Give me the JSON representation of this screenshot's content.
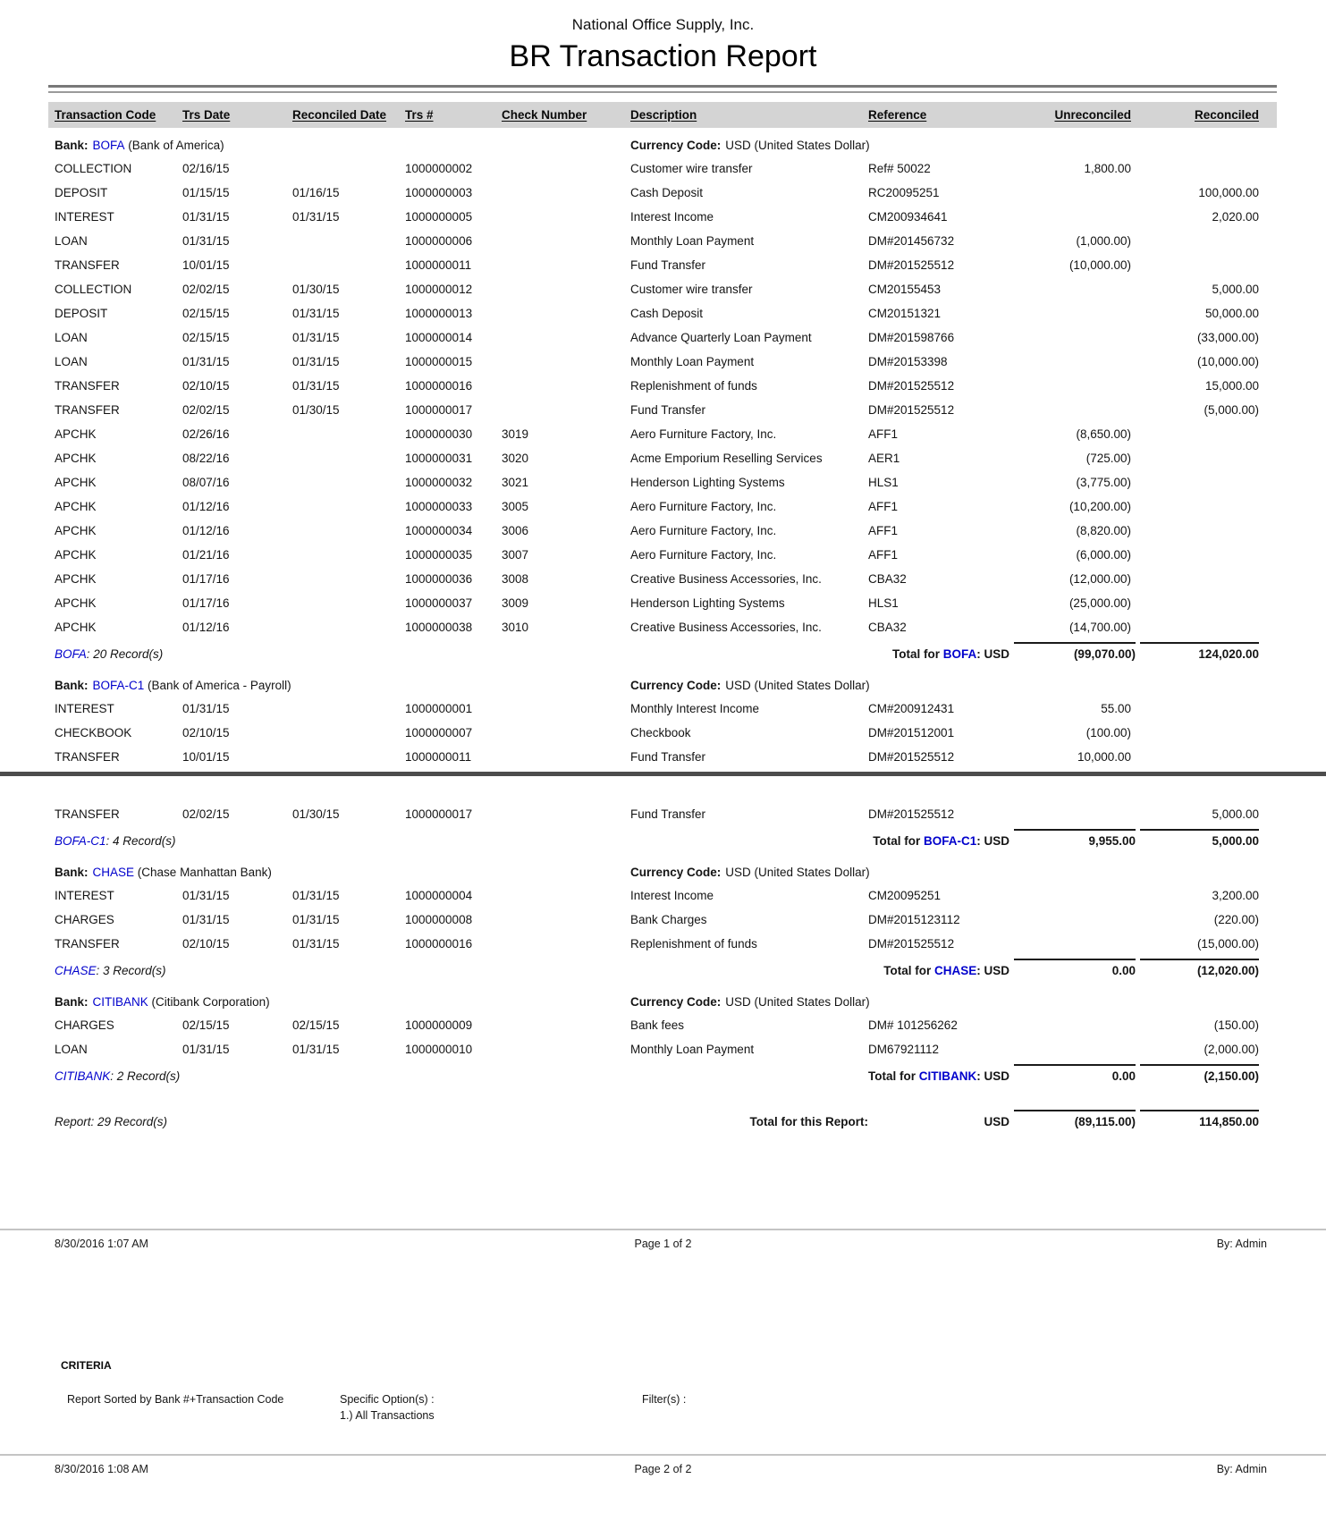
{
  "report": {
    "company": "National Office Supply, Inc.",
    "title": "BR Transaction Report",
    "colors": {
      "link_blue": "#0000cc",
      "header_band": "#d4d4d4",
      "rule_dark": "#787878",
      "page_break_line": "#4c4c4c",
      "footer_rule": "#c4c4c4"
    },
    "columns": [
      "Transaction Code",
      "Trs Date",
      "Reconciled Date",
      "Trs #",
      "Check Number",
      "Description",
      "Reference",
      "Unreconciled",
      "Reconciled"
    ],
    "labels": {
      "bank": "Bank:",
      "currency": "Currency Code:",
      "total_for": "Total for ",
      "colon_usd": ": USD"
    },
    "sections": [
      {
        "code": "BOFA",
        "name": "(Bank of America)",
        "currency": "USD (United States Dollar)",
        "records": ": 20 Record(s)",
        "total_unrec": "(99,070.00)",
        "total_rec": "124,020.00",
        "rows": [
          {
            "code": "COLLECTION",
            "trs_date": "02/16/15",
            "recon_date": "",
            "trs_no": "1000000002",
            "check": "",
            "desc": "Customer wire transfer",
            "ref": "Ref# 50022",
            "unrec": "1,800.00",
            "rec": ""
          },
          {
            "code": "DEPOSIT",
            "trs_date": "01/15/15",
            "recon_date": "01/16/15",
            "trs_no": "1000000003",
            "check": "",
            "desc": "Cash Deposit",
            "ref": "RC20095251",
            "unrec": "",
            "rec": "100,000.00"
          },
          {
            "code": "INTEREST",
            "trs_date": "01/31/15",
            "recon_date": "01/31/15",
            "trs_no": "1000000005",
            "check": "",
            "desc": "Interest Income",
            "ref": "CM200934641",
            "unrec": "",
            "rec": "2,020.00"
          },
          {
            "code": "LOAN",
            "trs_date": "01/31/15",
            "recon_date": "",
            "trs_no": "1000000006",
            "check": "",
            "desc": "Monthly Loan Payment",
            "ref": "DM#201456732",
            "unrec": "(1,000.00)",
            "rec": ""
          },
          {
            "code": "TRANSFER",
            "trs_date": "10/01/15",
            "recon_date": "",
            "trs_no": "1000000011",
            "check": "",
            "desc": "Fund Transfer",
            "ref": "DM#201525512",
            "unrec": "(10,000.00)",
            "rec": ""
          },
          {
            "code": "COLLECTION",
            "trs_date": "02/02/15",
            "recon_date": "01/30/15",
            "trs_no": "1000000012",
            "check": "",
            "desc": "Customer wire transfer",
            "ref": "CM20155453",
            "unrec": "",
            "rec": "5,000.00"
          },
          {
            "code": "DEPOSIT",
            "trs_date": "02/15/15",
            "recon_date": "01/31/15",
            "trs_no": "1000000013",
            "check": "",
            "desc": "Cash Deposit",
            "ref": "CM20151321",
            "unrec": "",
            "rec": "50,000.00"
          },
          {
            "code": "LOAN",
            "trs_date": "02/15/15",
            "recon_date": "01/31/15",
            "trs_no": "1000000014",
            "check": "",
            "desc": "Advance Quarterly Loan Payment",
            "ref": "DM#201598766",
            "unrec": "",
            "rec": "(33,000.00)"
          },
          {
            "code": "LOAN",
            "trs_date": "01/31/15",
            "recon_date": "01/31/15",
            "trs_no": "1000000015",
            "check": "",
            "desc": "Monthly Loan Payment",
            "ref": "DM#20153398",
            "unrec": "",
            "rec": "(10,000.00)"
          },
          {
            "code": "TRANSFER",
            "trs_date": "02/10/15",
            "recon_date": "01/31/15",
            "trs_no": "1000000016",
            "check": "",
            "desc": "Replenishment of funds",
            "ref": "DM#201525512",
            "unrec": "",
            "rec": "15,000.00"
          },
          {
            "code": "TRANSFER",
            "trs_date": "02/02/15",
            "recon_date": "01/30/15",
            "trs_no": "1000000017",
            "check": "",
            "desc": "Fund Transfer",
            "ref": "DM#201525512",
            "unrec": "",
            "rec": "(5,000.00)"
          },
          {
            "code": "APCHK",
            "trs_date": "02/26/16",
            "recon_date": "",
            "trs_no": "1000000030",
            "check": "3019",
            "desc": "Aero Furniture Factory, Inc.",
            "ref": "AFF1",
            "unrec": "(8,650.00)",
            "rec": ""
          },
          {
            "code": "APCHK",
            "trs_date": "08/22/16",
            "recon_date": "",
            "trs_no": "1000000031",
            "check": "3020",
            "desc": "Acme Emporium Reselling Services",
            "ref": "AER1",
            "unrec": "(725.00)",
            "rec": ""
          },
          {
            "code": "APCHK",
            "trs_date": "08/07/16",
            "recon_date": "",
            "trs_no": "1000000032",
            "check": "3021",
            "desc": "Henderson Lighting Systems",
            "ref": "HLS1",
            "unrec": "(3,775.00)",
            "rec": ""
          },
          {
            "code": "APCHK",
            "trs_date": "01/12/16",
            "recon_date": "",
            "trs_no": "1000000033",
            "check": "3005",
            "desc": "Aero Furniture Factory, Inc.",
            "ref": "AFF1",
            "unrec": "(10,200.00)",
            "rec": ""
          },
          {
            "code": "APCHK",
            "trs_date": "01/12/16",
            "recon_date": "",
            "trs_no": "1000000034",
            "check": "3006",
            "desc": "Aero Furniture Factory, Inc.",
            "ref": "AFF1",
            "unrec": "(8,820.00)",
            "rec": ""
          },
          {
            "code": "APCHK",
            "trs_date": "01/21/16",
            "recon_date": "",
            "trs_no": "1000000035",
            "check": "3007",
            "desc": "Aero Furniture Factory, Inc.",
            "ref": "AFF1",
            "unrec": "(6,000.00)",
            "rec": ""
          },
          {
            "code": "APCHK",
            "trs_date": "01/17/16",
            "recon_date": "",
            "trs_no": "1000000036",
            "check": "3008",
            "desc": "Creative Business Accessories, Inc.",
            "ref": "CBA32",
            "unrec": "(12,000.00)",
            "rec": ""
          },
          {
            "code": "APCHK",
            "trs_date": "01/17/16",
            "recon_date": "",
            "trs_no": "1000000037",
            "check": "3009",
            "desc": "Henderson Lighting Systems",
            "ref": "HLS1",
            "unrec": "(25,000.00)",
            "rec": ""
          },
          {
            "code": "APCHK",
            "trs_date": "01/12/16",
            "recon_date": "",
            "trs_no": "1000000038",
            "check": "3010",
            "desc": "Creative Business Accessories, Inc.",
            "ref": "CBA32",
            "unrec": "(14,700.00)",
            "rec": ""
          }
        ]
      },
      {
        "code": "BOFA-C1",
        "name": "(Bank of America - Payroll)",
        "currency": "USD (United States Dollar)",
        "records": ": 4 Record(s)",
        "total_unrec": "9,955.00",
        "total_rec": "5,000.00",
        "rows": [
          {
            "code": "INTEREST",
            "trs_date": "01/31/15",
            "recon_date": "",
            "trs_no": "1000000001",
            "check": "",
            "desc": "Monthly Interest Income",
            "ref": "CM#200912431",
            "unrec": "55.00",
            "rec": ""
          },
          {
            "code": "CHECKBOOK",
            "trs_date": "02/10/15",
            "recon_date": "",
            "trs_no": "1000000007",
            "check": "",
            "desc": "Checkbook",
            "ref": "DM#201512001",
            "unrec": "(100.00)",
            "rec": ""
          },
          {
            "code": "TRANSFER",
            "trs_date": "10/01/15",
            "recon_date": "",
            "trs_no": "1000000011",
            "check": "",
            "desc": "Fund Transfer",
            "ref": "DM#201525512",
            "unrec": "10,000.00",
            "rec": "",
            "page_break_after": true
          },
          {
            "code": "TRANSFER",
            "trs_date": "02/02/15",
            "recon_date": "01/30/15",
            "trs_no": "1000000017",
            "check": "",
            "desc": "Fund Transfer",
            "ref": "DM#201525512",
            "unrec": "",
            "rec": "5,000.00"
          }
        ]
      },
      {
        "code": "CHASE",
        "name": "(Chase Manhattan Bank)",
        "currency": "USD (United States Dollar)",
        "records": ": 3 Record(s)",
        "total_unrec": "0.00",
        "total_rec": "(12,020.00)",
        "rows": [
          {
            "code": "INTEREST",
            "trs_date": "01/31/15",
            "recon_date": "01/31/15",
            "trs_no": "1000000004",
            "check": "",
            "desc": "Interest Income",
            "ref": "CM20095251",
            "unrec": "",
            "rec": "3,200.00"
          },
          {
            "code": "CHARGES",
            "trs_date": "01/31/15",
            "recon_date": "01/31/15",
            "trs_no": "1000000008",
            "check": "",
            "desc": "Bank Charges",
            "ref": "DM#2015123112",
            "unrec": "",
            "rec": "(220.00)"
          },
          {
            "code": "TRANSFER",
            "trs_date": "02/10/15",
            "recon_date": "01/31/15",
            "trs_no": "1000000016",
            "check": "",
            "desc": "Replenishment of funds",
            "ref": "DM#201525512",
            "unrec": "",
            "rec": "(15,000.00)"
          }
        ]
      },
      {
        "code": "CITIBANK",
        "name": "(Citibank Corporation)",
        "currency": "USD (United States Dollar)",
        "records": ": 2 Record(s)",
        "total_unrec": "0.00",
        "total_rec": "(2,150.00)",
        "rows": [
          {
            "code": "CHARGES",
            "trs_date": "02/15/15",
            "recon_date": "02/15/15",
            "trs_no": "1000000009",
            "check": "",
            "desc": "Bank fees",
            "ref": "DM# 101256262",
            "unrec": "",
            "rec": "(150.00)"
          },
          {
            "code": "LOAN",
            "trs_date": "01/31/15",
            "recon_date": "01/31/15",
            "trs_no": "1000000010",
            "check": "",
            "desc": "Monthly Loan Payment",
            "ref": "DM67921112",
            "unrec": "",
            "rec": "(2,000.00)"
          }
        ]
      }
    ],
    "report_total": {
      "note": "Report: 29 Record(s)",
      "label": "Total for this Report:",
      "currency": "USD",
      "unreconciled": "(89,115.00)",
      "reconciled": "114,850.00"
    },
    "footer_page1": {
      "timestamp": "8/30/2016 1:07 AM",
      "page": "Page 1 of 2",
      "by": "By: Admin"
    },
    "criteria": {
      "heading": "CRITERIA",
      "sorted_by": "Report Sorted by Bank #+Transaction Code",
      "options_label": "Specific Option(s) :",
      "options_value": "1.) All Transactions",
      "filters_label": "Filter(s) :"
    },
    "footer_page2": {
      "timestamp": "8/30/2016 1:08 AM",
      "page": "Page 2 of 2",
      "by": "By: Admin"
    }
  }
}
